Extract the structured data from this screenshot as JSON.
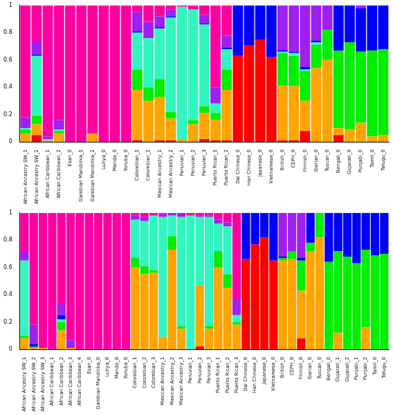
{
  "chart_data": [
    {
      "type": "bar",
      "stacked": true,
      "grid": false,
      "categories": [
        "African Ancestry SW_1",
        "African Ancestry SW_2",
        "African Caribbean_1",
        "African Caribbean_2",
        "Esan_0",
        "Gambian Mandinka_1",
        "Gambian Mandinka_2",
        "Luhya_0",
        "Mende_0",
        "Yoruba_0",
        "Colombian_1",
        "Colombian_2",
        "Mexican Ancestry_1",
        "Mexican Ancestry_2",
        "Peruvian_1",
        "Peruvian_2",
        "Peruvian_3",
        "Puerto Rican_1",
        "Puerto Rican_2",
        "Dai Chinese_0",
        "Han Chinese_0",
        "Japanese_0",
        "Vietnamese_0",
        "British_0",
        "CEPH_0",
        "Finnish_0",
        "Iberian_0",
        "Tuscan_0",
        "Bengali_0",
        "Gujarati_0",
        "Punjabi_0",
        "Tamil_0",
        "Telugu_0"
      ],
      "ylim": [
        0,
        1
      ],
      "yticks": [
        0,
        0.2,
        0.4,
        0.6,
        0.8,
        1
      ],
      "series": [
        {
          "color": "#ff0000",
          "values": [
            0,
            0.05,
            0,
            0,
            0,
            0,
            0,
            0,
            0,
            0,
            0.01,
            0,
            0.01,
            0.01,
            0,
            0,
            0.02,
            0.01,
            0.01,
            0.63,
            0.71,
            0.75,
            0.62,
            0.01,
            0.01,
            0.08,
            0,
            0,
            0.05,
            0,
            0,
            0,
            0
          ]
        },
        {
          "color": "#ffa500",
          "values": [
            0.06,
            0.08,
            0.01,
            0.06,
            0,
            0,
            0.06,
            0,
            0,
            0,
            0.37,
            0.3,
            0.32,
            0.16,
            0.02,
            0.13,
            0.19,
            0.15,
            0.37,
            0,
            0,
            0,
            0,
            0.4,
            0.4,
            0.22,
            0.54,
            0.6,
            0.05,
            0.09,
            0.14,
            0.04,
            0.05
          ]
        },
        {
          "color": "#00ee00",
          "values": [
            0.03,
            0.06,
            0,
            0.02,
            0,
            0,
            0,
            0,
            0,
            0,
            0.15,
            0.1,
            0.13,
            0.05,
            0,
            0.03,
            0.05,
            0.05,
            0.15,
            0,
            0,
            0,
            0,
            0.24,
            0.22,
            0.22,
            0.17,
            0.22,
            0.57,
            0.64,
            0.52,
            0.63,
            0.63
          ]
        },
        {
          "color": "#33f5c0",
          "values": [
            0.01,
            0.44,
            0.01,
            0.01,
            0,
            0,
            0,
            0,
            0,
            0,
            0.27,
            0.36,
            0.37,
            0.69,
            0.97,
            0.81,
            0.6,
            0.07,
            0.15,
            0,
            0,
            0,
            0,
            0.01,
            0.02,
            0.01,
            0.02,
            0,
            0,
            0,
            0,
            0,
            0
          ]
        },
        {
          "color": "#0000ff",
          "values": [
            0,
            0.01,
            0,
            0,
            0,
            0,
            0,
            0,
            0,
            0,
            0.01,
            0,
            0.01,
            0.01,
            0,
            0,
            0.01,
            0,
            0.01,
            0.37,
            0.29,
            0.25,
            0.38,
            0.01,
            0.01,
            0.02,
            0.01,
            0,
            0.33,
            0.27,
            0.32,
            0.33,
            0.32
          ]
        },
        {
          "color": "#a020f0",
          "values": [
            0.08,
            0.1,
            0.02,
            0.07,
            0,
            0,
            0,
            0,
            0,
            0,
            0.14,
            0.12,
            0.08,
            0.05,
            0,
            0,
            0.06,
            0.12,
            0.09,
            0,
            0,
            0,
            0,
            0.33,
            0.34,
            0.45,
            0.26,
            0.18,
            0,
            0,
            0.02,
            0,
            0
          ]
        },
        {
          "color": "#ff00a0",
          "values": [
            0.82,
            0.26,
            0.96,
            0.84,
            1,
            1,
            0.94,
            1,
            1,
            1,
            0.05,
            0.12,
            0.08,
            0.03,
            0.01,
            0.03,
            0.07,
            0.6,
            0.22,
            0,
            0,
            0,
            0,
            0,
            0,
            0,
            0,
            0,
            0,
            0,
            0,
            0,
            0
          ]
        }
      ]
    },
    {
      "type": "bar",
      "stacked": true,
      "grid": false,
      "categories": [
        "African Ancestry SW_1",
        "African Ancestry SW_2",
        "African Ancestry SW_3",
        "African Caribbean_1",
        "African Caribbean_2",
        "African Caribbean_3",
        "African Caribbean_4",
        "Esan_0",
        "Gambian Mandinka_0",
        "Luhya_0",
        "Mende_0",
        "Yoruba_0",
        "Colombian_1",
        "Colombian_2",
        "Colombian_3",
        "Mexican Ancestry_1",
        "Mexican Ancestry_2",
        "Mexican Ancestry_3",
        "Peruvian_1",
        "Peruvian_2",
        "Peruvian_3",
        "Puerto Rican_1",
        "Puerto Rican_2",
        "Puerto Rican_3",
        "Dai Chinese_0",
        "Han Chinese_0",
        "Japanese_0",
        "Vietnamese_0",
        "British_0",
        "CEPH_0",
        "Finnish_0",
        "Iberian_0",
        "Tuscan_0",
        "Bengali_0",
        "Gujarati_1",
        "Gujarati_2",
        "Punjabi_1",
        "Punjabi_2",
        "Tamil_0",
        "Telugu_0"
      ],
      "ylim": [
        0,
        1
      ],
      "yticks": [
        0,
        0.2,
        0.4,
        0.6,
        0.8,
        1
      ],
      "series": [
        {
          "color": "#ff0000",
          "values": [
            0,
            0,
            0,
            0,
            0,
            0,
            0,
            0,
            0,
            0,
            0,
            0,
            0,
            0,
            0,
            0,
            0,
            0,
            0,
            0.02,
            0,
            0,
            0,
            0,
            0.66,
            0.77,
            0.82,
            0.65,
            0,
            0,
            0.08,
            0,
            0,
            0,
            0,
            0,
            0,
            0,
            0,
            0
          ]
        },
        {
          "color": "#ffa500",
          "values": [
            0.08,
            0.01,
            0.01,
            0,
            0.14,
            0.01,
            0,
            0,
            0,
            0,
            0,
            0,
            0.6,
            0.55,
            0.56,
            0.09,
            0.73,
            0.15,
            0,
            0.45,
            0.15,
            0.6,
            0.45,
            0.18,
            0,
            0,
            0,
            0,
            0.65,
            0.66,
            0.35,
            0.72,
            0.82,
            0,
            0.12,
            0,
            0,
            0.16,
            0,
            0
          ]
        },
        {
          "color": "#00ee00",
          "values": [
            0.02,
            0.01,
            0,
            0,
            0.06,
            0,
            0,
            0,
            0,
            0,
            0,
            0,
            0.07,
            0.06,
            0.02,
            0,
            0.1,
            0.02,
            0,
            0,
            0.02,
            0.12,
            0.1,
            0.02,
            0,
            0,
            0,
            0,
            0.02,
            0.06,
            0.22,
            0.06,
            0.18,
            0.64,
            0.6,
            0.68,
            0.63,
            0.57,
            0.69,
            0.7
          ]
        },
        {
          "color": "#33f5c0",
          "values": [
            0.55,
            0,
            0,
            0,
            0.02,
            0,
            0,
            0,
            0,
            0,
            0,
            0,
            0.28,
            0.33,
            0.4,
            0.88,
            0.15,
            0.8,
            0.98,
            0.5,
            0.8,
            0.2,
            0.35,
            0.05,
            0,
            0,
            0,
            0,
            0,
            0,
            0,
            0,
            0,
            0,
            0,
            0,
            0,
            0,
            0,
            0
          ]
        },
        {
          "color": "#0000ff",
          "values": [
            0,
            0.02,
            0,
            0,
            0.03,
            0,
            0,
            0,
            0,
            0,
            0,
            0,
            0,
            0,
            0,
            0,
            0,
            0,
            0,
            0,
            0,
            0,
            0,
            0,
            0.34,
            0.23,
            0.18,
            0.35,
            0.01,
            0,
            0.02,
            0.22,
            0,
            0.36,
            0.28,
            0.32,
            0.37,
            0.27,
            0.31,
            0.3
          ]
        },
        {
          "color": "#a020f0",
          "values": [
            0.07,
            0.14,
            0,
            0,
            0.08,
            0.06,
            0,
            0,
            0,
            0,
            0,
            0,
            0.03,
            0.03,
            0,
            0.02,
            0.02,
            0.03,
            0,
            0.01,
            0.01,
            0.03,
            0.03,
            0.12,
            0,
            0,
            0,
            0,
            0.32,
            0.28,
            0.33,
            0,
            0,
            0,
            0,
            0,
            0,
            0,
            0,
            0
          ]
        },
        {
          "color": "#ff00a0",
          "values": [
            0.28,
            0.82,
            0.99,
            1,
            0.67,
            0.93,
            1,
            1,
            1,
            1,
            1,
            1,
            0.02,
            0.03,
            0.02,
            0.01,
            0,
            0,
            0.02,
            0.02,
            0.02,
            0.05,
            0.07,
            0.63,
            0,
            0,
            0,
            0,
            0,
            0,
            0,
            0,
            0,
            0,
            0,
            0,
            0,
            0,
            0,
            0
          ]
        }
      ]
    }
  ]
}
